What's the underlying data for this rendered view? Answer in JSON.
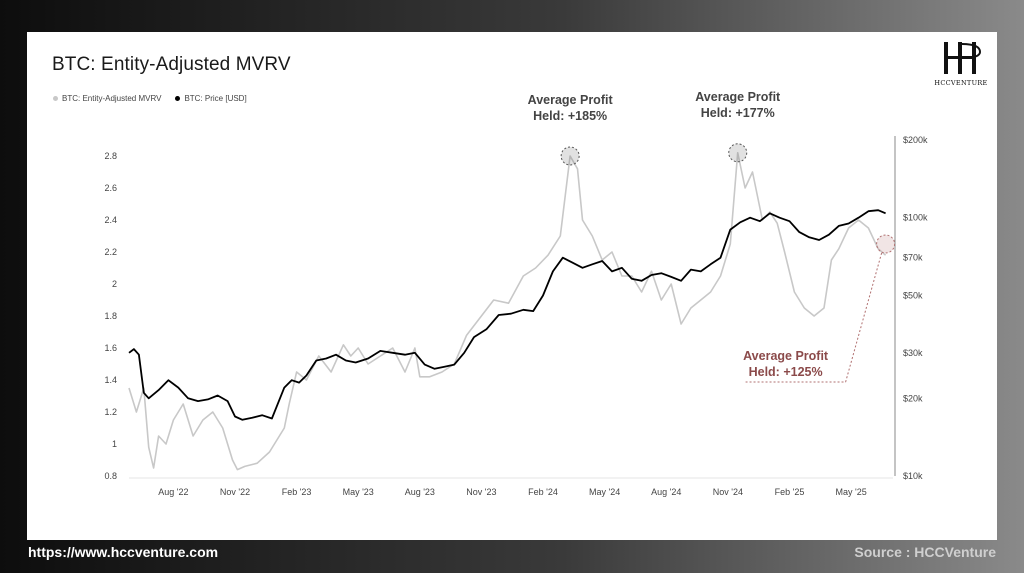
{
  "footer": {
    "url": "https://www.hccventure.com",
    "source": "Source : HCCVenture"
  },
  "logo": {
    "text": "HCCVENTURE",
    "icon": "hcc-monogram-logo"
  },
  "colors": {
    "mvrv": "#c8c8c8",
    "price": "#000000",
    "annotation_dark": "#444444",
    "annotation_accent": "#8b4a4a",
    "grid": "#e8e8e8"
  },
  "chart_data": {
    "type": "line",
    "title": "BTC: Entity-Adjusted MVRV",
    "legend": [
      "BTC: Entity-Adjusted MVRV",
      "BTC: Price [USD]"
    ],
    "legend_placement": "top-left",
    "grid": false,
    "x_ticks": [
      "Aug '22",
      "Nov '22",
      "Feb '23",
      "May '23",
      "Aug '23",
      "Nov '23",
      "Feb '24",
      "May '24",
      "Aug '24",
      "Nov '24",
      "Feb '25",
      "May '25"
    ],
    "x_tick_values": [
      2022.58,
      2022.83,
      2023.08,
      2023.33,
      2023.58,
      2023.83,
      2024.08,
      2024.33,
      2024.58,
      2024.83,
      2025.08,
      2025.33
    ],
    "xlim": [
      2022.4,
      2025.5
    ],
    "y_left": {
      "label": "",
      "ylim": [
        0.8,
        2.9
      ],
      "ticks": [
        0.8,
        1,
        1.2,
        1.4,
        1.6,
        1.8,
        2,
        2.2,
        2.4,
        2.6,
        2.8
      ],
      "tick_labels": [
        "0.8",
        "1",
        "1.2",
        "1.4",
        "1.6",
        "1.8",
        "2",
        "2.2",
        "2.4",
        "2.6",
        "2.8"
      ]
    },
    "y_right": {
      "label": "",
      "scale": "log",
      "ylim": [
        10000,
        200000
      ],
      "ticks": [
        10000,
        20000,
        30000,
        50000,
        70000,
        100000,
        200000
      ],
      "tick_labels": [
        "$10k",
        "$20k",
        "$30k",
        "$50k",
        "$70k",
        "$100k",
        "$200k"
      ]
    },
    "series": [
      {
        "name": "BTC: Entity-Adjusted MVRV",
        "axis": "left",
        "x": [
          2022.4,
          2022.43,
          2022.46,
          2022.48,
          2022.5,
          2022.52,
          2022.55,
          2022.58,
          2022.62,
          2022.66,
          2022.7,
          2022.74,
          2022.78,
          2022.82,
          2022.84,
          2022.87,
          2022.92,
          2022.97,
          2023.03,
          2023.05,
          2023.08,
          2023.12,
          2023.17,
          2023.22,
          2023.27,
          2023.3,
          2023.33,
          2023.37,
          2023.42,
          2023.47,
          2023.52,
          2023.56,
          2023.58,
          2023.62,
          2023.67,
          2023.72,
          2023.77,
          2023.83,
          2023.88,
          2023.94,
          2024.0,
          2024.05,
          2024.1,
          2024.15,
          2024.19,
          2024.22,
          2024.24,
          2024.28,
          2024.32,
          2024.36,
          2024.4,
          2024.44,
          2024.48,
          2024.52,
          2024.56,
          2024.6,
          2024.64,
          2024.68,
          2024.72,
          2024.76,
          2024.8,
          2024.84,
          2024.87,
          2024.9,
          2024.93,
          2024.97,
          2025.0,
          2025.03,
          2025.06,
          2025.1,
          2025.14,
          2025.18,
          2025.22,
          2025.25,
          2025.28,
          2025.32,
          2025.36,
          2025.4,
          2025.44,
          2025.47
        ],
        "values": [
          1.35,
          1.2,
          1.35,
          0.98,
          0.85,
          1.05,
          1.0,
          1.15,
          1.25,
          1.05,
          1.15,
          1.2,
          1.1,
          0.9,
          0.84,
          0.86,
          0.88,
          0.95,
          1.1,
          1.25,
          1.45,
          1.4,
          1.55,
          1.45,
          1.62,
          1.55,
          1.6,
          1.5,
          1.55,
          1.6,
          1.45,
          1.6,
          1.42,
          1.42,
          1.45,
          1.5,
          1.68,
          1.8,
          1.9,
          1.88,
          2.05,
          2.1,
          2.18,
          2.3,
          2.8,
          2.72,
          2.4,
          2.3,
          2.15,
          2.2,
          2.05,
          2.05,
          1.95,
          2.08,
          1.9,
          2.0,
          1.75,
          1.85,
          1.9,
          1.95,
          2.05,
          2.25,
          2.82,
          2.6,
          2.7,
          2.4,
          2.45,
          2.38,
          2.2,
          1.95,
          1.85,
          1.8,
          1.85,
          2.15,
          2.22,
          2.35,
          2.4,
          2.35,
          2.22,
          2.18
        ]
      },
      {
        "name": "BTC: Price [USD]",
        "axis": "right",
        "x": [
          2022.4,
          2022.42,
          2022.44,
          2022.46,
          2022.48,
          2022.52,
          2022.56,
          2022.6,
          2022.64,
          2022.68,
          2022.72,
          2022.76,
          2022.8,
          2022.83,
          2022.86,
          2022.9,
          2022.94,
          2022.98,
          2023.03,
          2023.06,
          2023.09,
          2023.12,
          2023.16,
          2023.2,
          2023.24,
          2023.28,
          2023.32,
          2023.37,
          2023.42,
          2023.47,
          2023.52,
          2023.56,
          2023.6,
          2023.64,
          2023.68,
          2023.72,
          2023.76,
          2023.8,
          2023.85,
          2023.9,
          2023.95,
          2024.0,
          2024.04,
          2024.08,
          2024.12,
          2024.16,
          2024.2,
          2024.24,
          2024.28,
          2024.32,
          2024.36,
          2024.4,
          2024.44,
          2024.48,
          2024.52,
          2024.56,
          2024.6,
          2024.64,
          2024.68,
          2024.72,
          2024.76,
          2024.8,
          2024.84,
          2024.88,
          2024.92,
          2024.96,
          2025.0,
          2025.04,
          2025.08,
          2025.12,
          2025.16,
          2025.2,
          2025.24,
          2025.28,
          2025.32,
          2025.36,
          2025.4,
          2025.44,
          2025.47
        ],
        "values": [
          30000,
          31000,
          29500,
          21000,
          20000,
          21500,
          23500,
          22000,
          20000,
          19500,
          19800,
          20500,
          19500,
          17000,
          16500,
          16800,
          17200,
          16700,
          22000,
          23500,
          23000,
          24500,
          28000,
          28500,
          29500,
          28000,
          27500,
          28500,
          30500,
          30000,
          29500,
          30000,
          27000,
          26000,
          26500,
          27000,
          30000,
          34500,
          37000,
          42000,
          42500,
          44000,
          43500,
          50000,
          62000,
          70000,
          67000,
          64000,
          66000,
          68000,
          62000,
          64000,
          58000,
          57000,
          60000,
          61000,
          59000,
          57000,
          63000,
          62000,
          66000,
          70000,
          90000,
          96000,
          100000,
          97000,
          104000,
          100000,
          97000,
          88000,
          84000,
          82000,
          86000,
          93000,
          95000,
          100000,
          106000,
          107000,
          104000
        ]
      }
    ],
    "annotations": [
      {
        "text_line1": "Average Profit",
        "text_line2": "Held: +185%",
        "x": 2024.19,
        "y": 2.8,
        "axis": "left",
        "style": "dark"
      },
      {
        "text_line1": "Average Profit",
        "text_line2": "Held: +177%",
        "x": 2024.87,
        "y": 2.82,
        "axis": "left",
        "style": "dark"
      },
      {
        "text_line1": "Average Profit",
        "text_line2": "Held: +125%",
        "x": 2025.47,
        "y": 2.25,
        "axis": "left",
        "style": "accent"
      }
    ]
  }
}
